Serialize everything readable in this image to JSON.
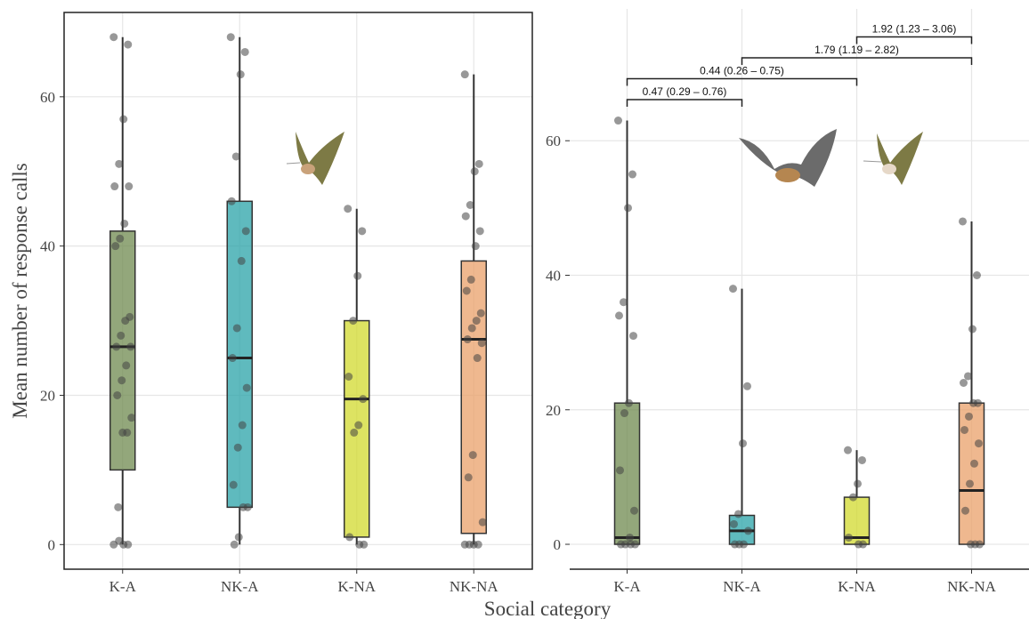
{
  "chart_data": [
    {
      "type": "box",
      "y_label": "Mean number of response calls",
      "x_label": "Social category",
      "categories": [
        "K-A",
        "NK-A",
        "K-NA",
        "NK-NA"
      ],
      "colors": [
        "#6f8a4f",
        "#2aa3a8",
        "#d2da2e",
        "#e9a06a"
      ],
      "ylim": [
        -3.3,
        71.3
      ],
      "yticks": [
        0,
        20,
        40,
        60
      ],
      "grid": true,
      "boxes": [
        {
          "low": 0,
          "q1": 10,
          "median": 26.5,
          "q3": 42,
          "high": 68,
          "points": [
            68,
            67,
            57,
            51,
            48,
            48,
            43,
            41,
            40,
            30.5,
            30,
            28,
            26.5,
            26.5,
            24,
            22,
            20,
            17,
            15,
            15,
            5,
            0,
            0,
            0,
            0.5
          ]
        },
        {
          "low": 0,
          "q1": 5,
          "median": 25,
          "q3": 46,
          "high": 68,
          "points": [
            68,
            66,
            63,
            52,
            46,
            42,
            38,
            29,
            25,
            21,
            16,
            13,
            8,
            5,
            5,
            1,
            0
          ]
        },
        {
          "low": 0,
          "q1": 1,
          "median": 19.5,
          "q3": 30,
          "high": 45,
          "points": [
            45,
            42,
            36,
            30,
            22.5,
            19.5,
            16,
            15,
            1,
            0,
            0
          ]
        },
        {
          "low": 0,
          "q1": 1.5,
          "median": 27.5,
          "q3": 38,
          "high": 63,
          "points": [
            63,
            51,
            50,
            45.5,
            44,
            42,
            40,
            35.5,
            34,
            31,
            30,
            29,
            27.5,
            27,
            25,
            12,
            9,
            3,
            0,
            0,
            0,
            0
          ]
        }
      ]
    },
    {
      "type": "box",
      "categories": [
        "K-A",
        "NK-A",
        "K-NA",
        "NK-NA"
      ],
      "colors": [
        "#6f8a4f",
        "#2aa3a8",
        "#d2da2e",
        "#e9a06a"
      ],
      "ylim": [
        -3.7,
        79.6
      ],
      "yticks": [
        0,
        20,
        40,
        60
      ],
      "grid": true,
      "boxes": [
        {
          "low": 0,
          "q1": 0,
          "median": 1,
          "q3": 21,
          "high": 63,
          "points": [
            63,
            55,
            50,
            36,
            34,
            31,
            21,
            19.5,
            11,
            5,
            1,
            0,
            0,
            0,
            0
          ]
        },
        {
          "low": 0,
          "q1": 0,
          "median": 2,
          "q3": 4.3,
          "high": 38,
          "points": [
            38,
            23.5,
            15,
            4.5,
            3,
            2,
            0,
            0,
            0
          ]
        },
        {
          "low": 0,
          "q1": 0,
          "median": 1,
          "q3": 7,
          "high": 14,
          "points": [
            14,
            12.5,
            9,
            7,
            1,
            0,
            0
          ]
        },
        {
          "low": 0,
          "q1": 0,
          "median": 8,
          "q3": 21,
          "high": 48,
          "points": [
            48,
            40,
            32,
            25,
            24,
            21,
            21,
            19,
            17,
            15,
            12,
            9,
            5,
            0,
            0,
            0
          ]
        }
      ],
      "annotations": [
        {
          "label": "0.47 (0.29 – 0.76)",
          "from": "K-A",
          "to": "NK-A"
        },
        {
          "label": "0.44 (0.26 – 0.75)",
          "from": "K-A",
          "to": "K-NA"
        },
        {
          "label": "1.79 (1.19 – 2.82)",
          "from": "NK-A",
          "to": "NK-NA"
        },
        {
          "label": "1.92 (1.23 – 3.06)",
          "from": "K-NA",
          "to": "NK-NA"
        }
      ]
    }
  ]
}
